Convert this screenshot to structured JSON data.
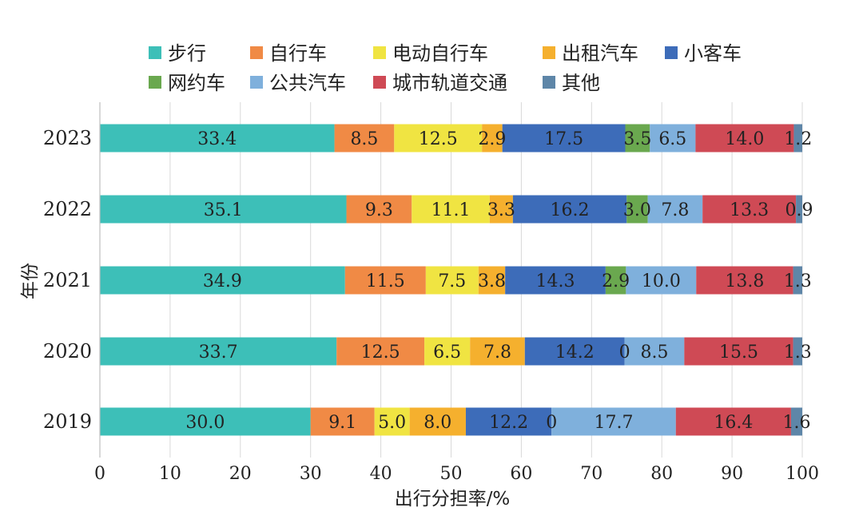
{
  "chart_data": {
    "type": "bar",
    "orientation": "horizontal",
    "stacked": true,
    "title": "",
    "xlabel": "出行分担率/%",
    "ylabel": "年份",
    "xlim": [
      0,
      100
    ],
    "xticks": [
      0,
      10,
      20,
      30,
      40,
      50,
      60,
      70,
      80,
      90,
      100
    ],
    "grid": true,
    "legend_position": "top",
    "categories": [
      "2023",
      "2022",
      "2021",
      "2020",
      "2019"
    ],
    "series": [
      {
        "name": "步行",
        "color": "#3dbfb8",
        "values": [
          33.4,
          35.1,
          34.9,
          33.7,
          30.0
        ],
        "labels": [
          "33.4",
          "35.1",
          "34.9",
          "33.7",
          "30.0"
        ]
      },
      {
        "name": "自行车",
        "color": "#f08a45",
        "values": [
          8.5,
          9.3,
          11.5,
          12.5,
          9.1
        ],
        "labels": [
          "8.5",
          "9.3",
          "11.5",
          "12.5",
          "9.1"
        ]
      },
      {
        "name": "电动自行车",
        "color": "#f0e442",
        "values": [
          12.5,
          11.1,
          7.5,
          6.5,
          5.0
        ],
        "labels": [
          "12.5",
          "11.1",
          "7.5",
          "6.5",
          "5.0"
        ]
      },
      {
        "name": "出租汽车",
        "color": "#f5b02e",
        "values": [
          2.9,
          3.3,
          3.8,
          7.8,
          8.0
        ],
        "labels": [
          "2.9",
          "3.3",
          "3.8",
          "7.8",
          "8.0"
        ]
      },
      {
        "name": "小客车",
        "color": "#3d6cb9",
        "values": [
          17.5,
          16.2,
          14.3,
          14.2,
          12.2
        ],
        "labels": [
          "17.5",
          "16.2",
          "14.3",
          "14.2",
          "12.2"
        ]
      },
      {
        "name": "网约车",
        "color": "#6aa84f",
        "values": [
          3.5,
          3.0,
          2.9,
          0,
          0
        ],
        "labels": [
          "3.5",
          "3.0",
          "2.9",
          "0",
          "0"
        ]
      },
      {
        "name": "公共汽车",
        "color": "#7fb0dc",
        "values": [
          6.5,
          7.8,
          10.0,
          8.5,
          17.7
        ],
        "labels": [
          "6.5",
          "7.8",
          "10.0",
          "8.5",
          "17.7"
        ]
      },
      {
        "name": "城市轨道交通",
        "color": "#cf4a55",
        "values": [
          14.0,
          13.3,
          13.8,
          15.5,
          16.4
        ],
        "labels": [
          "14.0",
          "13.3",
          "13.8",
          "15.5",
          "16.4"
        ]
      },
      {
        "name": "其他",
        "color": "#5e86a8",
        "values": [
          1.2,
          0.9,
          1.3,
          1.3,
          1.6
        ],
        "labels": [
          "1.2",
          "0.9",
          "1.3",
          "1.3",
          "1.6"
        ]
      }
    ]
  }
}
